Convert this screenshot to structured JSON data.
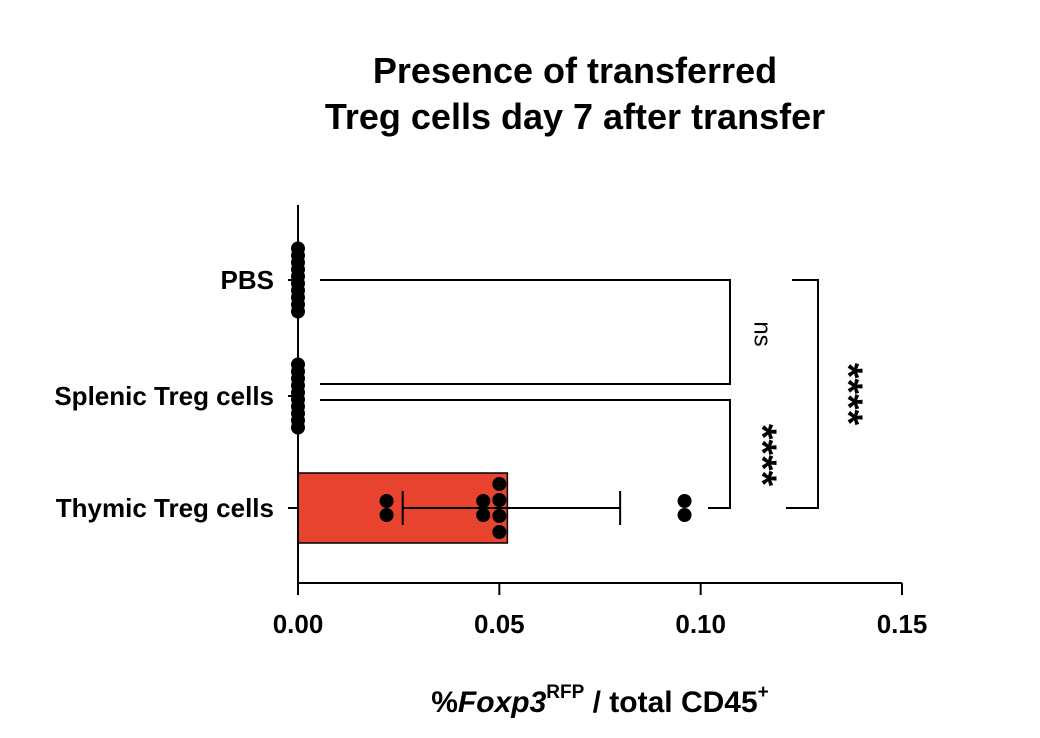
{
  "chart_data": {
    "type": "bar",
    "orientation": "horizontal",
    "title": [
      "Presence of transferred",
      "Treg cells day 7 after transfer"
    ],
    "xlabel": {
      "prefix": "%",
      "gene": "Foxp3",
      "gene_superscript": "RFP",
      "middle": "/ total CD45",
      "end_superscript": "+"
    },
    "categories": [
      "PBS",
      "Splenic Treg cells",
      "Thymic Treg cells"
    ],
    "xlim": [
      0,
      0.15
    ],
    "xticks": [
      0,
      0.05,
      0.1,
      0.15
    ],
    "xtick_labels": [
      "0.00",
      "0.05",
      "0.10",
      "0.15"
    ],
    "bars": [
      {
        "category": "PBS",
        "mean": 0,
        "points": [
          0,
          0,
          0,
          0,
          0,
          0,
          0,
          0,
          0,
          0
        ]
      },
      {
        "category": "Splenic Treg cells",
        "mean": 0,
        "points": [
          0,
          0,
          0,
          0,
          0,
          0,
          0,
          0,
          0,
          0
        ]
      },
      {
        "category": "Thymic Treg cells",
        "mean": 0.052,
        "error_low": 0.026,
        "error_high": 0.08,
        "points": [
          0.022,
          0.022,
          0.046,
          0.046,
          0.05,
          0.05,
          0.05,
          0.05,
          0.096,
          0.096
        ]
      }
    ],
    "significance": [
      {
        "between": [
          "PBS",
          "Splenic Treg cells"
        ],
        "label": "ns"
      },
      {
        "between": [
          "Splenic Treg cells",
          "Thymic Treg cells"
        ],
        "label": "****"
      },
      {
        "between": [
          "PBS",
          "Thymic Treg cells"
        ],
        "label": "****"
      }
    ],
    "colors": {
      "bar": "#e8432f",
      "points": "#000000",
      "axis": "#000000"
    },
    "grid": false,
    "legend": "none"
  }
}
